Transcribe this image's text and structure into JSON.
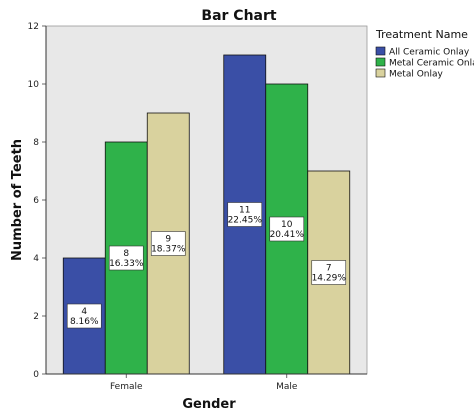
{
  "chart_data": {
    "type": "bar",
    "title": "Bar Chart",
    "xlabel": "Gender",
    "ylabel": "Number of Teeth",
    "categories": [
      "Female",
      "Male"
    ],
    "ylim": [
      0,
      12
    ],
    "yticks": [
      0,
      2,
      4,
      6,
      8,
      10,
      12
    ],
    "grid": false,
    "legend": {
      "title": "Treatment Name",
      "position": "right"
    },
    "series": [
      {
        "name": "All Ceramic Onlay",
        "color": "#3a4fa6",
        "values": [
          4,
          11
        ],
        "labels": [
          [
            "4",
            "8.16%"
          ],
          [
            "11",
            "22.45%"
          ]
        ]
      },
      {
        "name": "Metal Ceramic Onlay",
        "color": "#2fb24a",
        "values": [
          8,
          10
        ],
        "labels": [
          [
            "8",
            "16.33%"
          ],
          [
            "10",
            "20.41%"
          ]
        ]
      },
      {
        "name": "Metal Onlay",
        "color": "#d9d29e",
        "values": [
          9,
          7
        ],
        "labels": [
          [
            "9",
            "18.37%"
          ],
          [
            "7",
            "14.29%"
          ]
        ]
      }
    ]
  }
}
